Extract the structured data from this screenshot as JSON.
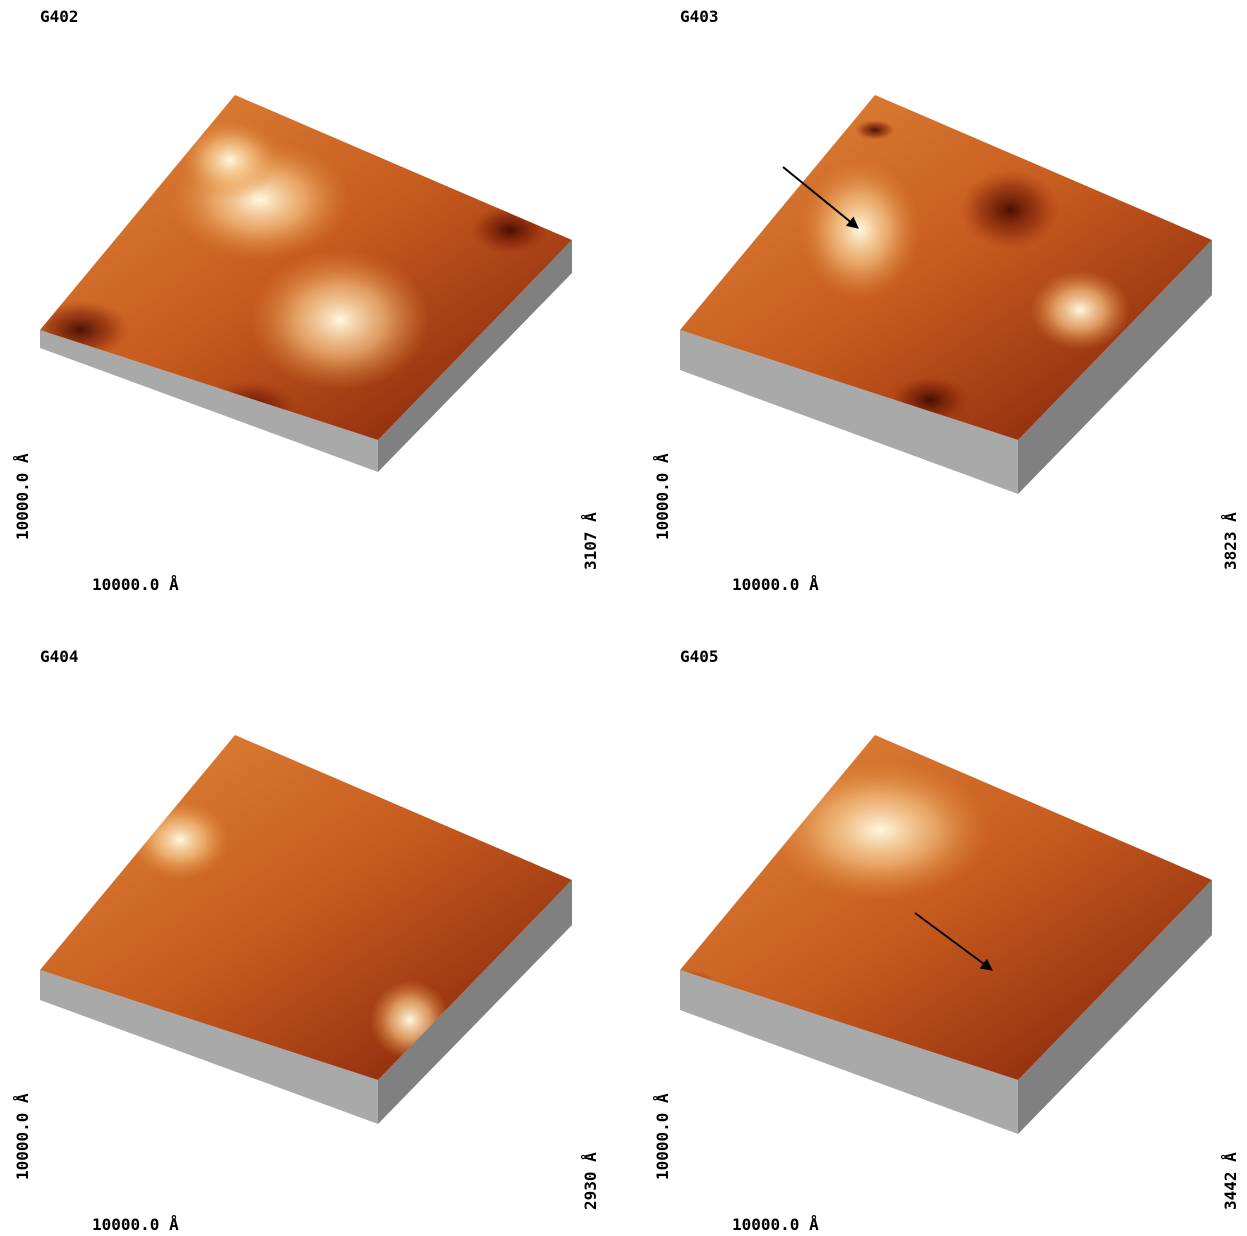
{
  "panels": [
    {
      "title": "G402",
      "y_label": "10000.0 Å",
      "x_label": "10000.0 Å",
      "z_label": "3107 Å"
    },
    {
      "title": "G403",
      "y_label": "10000.0 Å",
      "x_label": "10000.0 Å",
      "z_label": "3823 Å"
    },
    {
      "title": "G404",
      "y_label": "10000.0 Å",
      "x_label": "10000.0 Å",
      "z_label": "2930 Å"
    },
    {
      "title": "G405",
      "y_label": "10000.0 Å",
      "x_label": "10000.0 Å",
      "z_label": "3442 Å"
    }
  ]
}
